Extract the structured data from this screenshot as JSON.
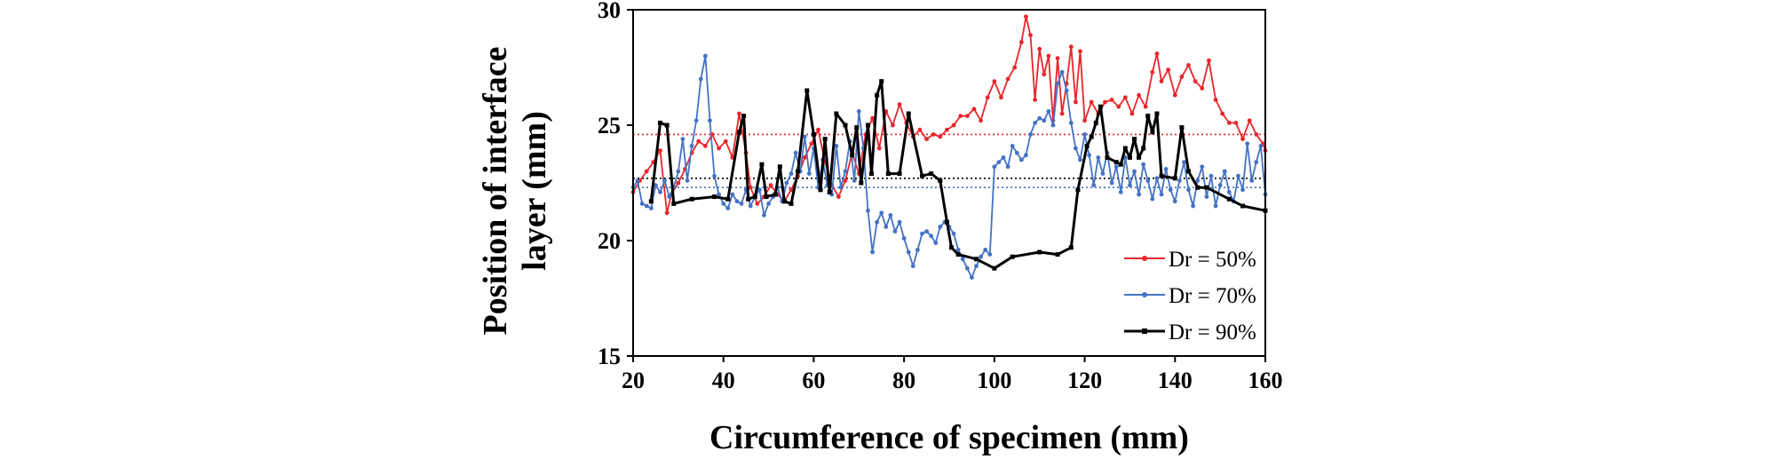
{
  "chart_data": {
    "type": "line",
    "title": "",
    "xlabel": "Circumference of specimen (mm)",
    "ylabel_lines": [
      "Position of interface",
      "layer (mm)"
    ],
    "xlim": [
      20,
      160
    ],
    "ylim": [
      15,
      30
    ],
    "x_ticks": [
      20,
      40,
      60,
      80,
      100,
      120,
      140,
      160
    ],
    "y_ticks": [
      15,
      20,
      25,
      30
    ],
    "grid": false,
    "legend_position": "lower-right inside",
    "series": [
      {
        "name": "Dr = 50%",
        "color": "#e8262b",
        "mean": 24.6,
        "points": [
          [
            20,
            22.1
          ],
          [
            21.5,
            22.6
          ],
          [
            23,
            23.0
          ],
          [
            24.5,
            23.4
          ],
          [
            26,
            23.9
          ],
          [
            27.5,
            21.2
          ],
          [
            28.5,
            22.0
          ],
          [
            30,
            22.5
          ],
          [
            31.5,
            23.1
          ],
          [
            33,
            23.8
          ],
          [
            34.5,
            24.3
          ],
          [
            36,
            24.1
          ],
          [
            37.5,
            24.6
          ],
          [
            39,
            24.0
          ],
          [
            40.5,
            24.3
          ],
          [
            42,
            23.6
          ],
          [
            43.5,
            25.5
          ],
          [
            45,
            23.8
          ],
          [
            46,
            22.3
          ],
          [
            47.5,
            21.6
          ],
          [
            49,
            21.9
          ],
          [
            50.5,
            22.4
          ],
          [
            52,
            22.0
          ],
          [
            53.5,
            21.7
          ],
          [
            55,
            22.2
          ],
          [
            56.5,
            22.8
          ],
          [
            58,
            23.6
          ],
          [
            59.5,
            24.2
          ],
          [
            61,
            24.8
          ],
          [
            62.5,
            23.4
          ],
          [
            64,
            22.4
          ],
          [
            65.5,
            21.9
          ],
          [
            67,
            22.6
          ],
          [
            68.5,
            23.8
          ],
          [
            70,
            22.9
          ],
          [
            71.5,
            24.6
          ],
          [
            73,
            25.3
          ],
          [
            74.5,
            24.0
          ],
          [
            76,
            25.6
          ],
          [
            77.5,
            25.0
          ],
          [
            79,
            25.9
          ],
          [
            80.5,
            25.1
          ],
          [
            82,
            24.5
          ],
          [
            83.5,
            24.8
          ],
          [
            85,
            24.4
          ],
          [
            86.5,
            24.6
          ],
          [
            88,
            24.5
          ],
          [
            89.5,
            24.8
          ],
          [
            91,
            25.0
          ],
          [
            92.5,
            25.4
          ],
          [
            94,
            25.4
          ],
          [
            95.5,
            25.7
          ],
          [
            97,
            25.2
          ],
          [
            98.5,
            26.2
          ],
          [
            100,
            26.9
          ],
          [
            101.5,
            26.2
          ],
          [
            103,
            27.0
          ],
          [
            104.5,
            27.5
          ],
          [
            106,
            28.6
          ],
          [
            107,
            29.7
          ],
          [
            108,
            28.9
          ],
          [
            109,
            26.1
          ],
          [
            110,
            28.3
          ],
          [
            111,
            27.2
          ],
          [
            112,
            28.0
          ],
          [
            113,
            25.2
          ],
          [
            114,
            27.9
          ],
          [
            115,
            25.5
          ],
          [
            116,
            26.8
          ],
          [
            117,
            28.4
          ],
          [
            118,
            26.0
          ],
          [
            119,
            28.2
          ],
          [
            120,
            25.2
          ],
          [
            121.5,
            26.0
          ],
          [
            123,
            25.5
          ],
          [
            124.5,
            26.0
          ],
          [
            126,
            26.1
          ],
          [
            127.5,
            25.8
          ],
          [
            129,
            26.2
          ],
          [
            130.5,
            25.5
          ],
          [
            132,
            26.3
          ],
          [
            133.5,
            25.8
          ],
          [
            135,
            27.3
          ],
          [
            136,
            28.1
          ],
          [
            137,
            26.9
          ],
          [
            138.5,
            27.4
          ],
          [
            140,
            26.3
          ],
          [
            141.5,
            27.1
          ],
          [
            143,
            27.6
          ],
          [
            144.5,
            26.9
          ],
          [
            146,
            26.6
          ],
          [
            147.5,
            27.8
          ],
          [
            149,
            26.1
          ],
          [
            150.5,
            25.5
          ],
          [
            152,
            25.1
          ],
          [
            153.5,
            25.1
          ],
          [
            155,
            24.4
          ],
          [
            156.5,
            25.2
          ],
          [
            158,
            24.6
          ],
          [
            159.5,
            24.2
          ],
          [
            160,
            23.9
          ]
        ]
      },
      {
        "name": "Dr = 70%",
        "color": "#4472c4",
        "mean": 22.3,
        "points": [
          [
            20,
            22.3
          ],
          [
            21,
            22.6
          ],
          [
            22,
            21.6
          ],
          [
            23,
            21.5
          ],
          [
            24,
            21.4
          ],
          [
            25,
            22.4
          ],
          [
            26,
            22.1
          ],
          [
            27,
            22.6
          ],
          [
            28,
            21.9
          ],
          [
            29,
            22.3
          ],
          [
            30,
            23.0
          ],
          [
            31,
            24.4
          ],
          [
            32,
            22.6
          ],
          [
            33,
            24.1
          ],
          [
            34,
            25.2
          ],
          [
            35,
            27.0
          ],
          [
            36,
            28.0
          ],
          [
            37,
            25.2
          ],
          [
            38,
            22.8
          ],
          [
            39,
            22.0
          ],
          [
            40,
            21.6
          ],
          [
            41,
            21.4
          ],
          [
            42,
            22.0
          ],
          [
            43,
            21.7
          ],
          [
            44,
            21.6
          ],
          [
            45,
            22.2
          ],
          [
            46,
            21.5
          ],
          [
            47,
            21.9
          ],
          [
            48,
            22.2
          ],
          [
            49,
            21.1
          ],
          [
            50,
            21.6
          ],
          [
            51,
            21.9
          ],
          [
            52,
            22.3
          ],
          [
            53,
            21.7
          ],
          [
            54,
            22.5
          ],
          [
            55,
            22.9
          ],
          [
            56,
            23.8
          ],
          [
            57,
            23.0
          ],
          [
            58,
            24.5
          ],
          [
            59,
            22.9
          ],
          [
            60,
            24.0
          ],
          [
            61,
            22.3
          ],
          [
            62,
            23.5
          ],
          [
            63,
            22.4
          ],
          [
            64,
            22.0
          ],
          [
            65,
            24.1
          ],
          [
            66,
            22.3
          ],
          [
            67,
            23.0
          ],
          [
            68,
            24.3
          ],
          [
            69,
            22.6
          ],
          [
            70,
            25.6
          ],
          [
            71,
            24.0
          ],
          [
            72,
            21.3
          ],
          [
            73,
            19.5
          ],
          [
            74,
            20.8
          ],
          [
            75,
            21.2
          ],
          [
            76,
            20.6
          ],
          [
            77,
            21.1
          ],
          [
            78,
            20.4
          ],
          [
            79,
            20.8
          ],
          [
            80,
            20.1
          ],
          [
            81,
            19.5
          ],
          [
            82,
            18.9
          ],
          [
            83,
            19.6
          ],
          [
            84,
            20.3
          ],
          [
            85,
            20.4
          ],
          [
            86,
            20.2
          ],
          [
            87,
            19.9
          ],
          [
            88,
            20.6
          ],
          [
            89,
            20.8
          ],
          [
            90,
            20.6
          ],
          [
            91,
            20.3
          ],
          [
            92,
            19.6
          ],
          [
            93,
            19.2
          ],
          [
            94,
            18.8
          ],
          [
            95,
            18.4
          ],
          [
            96,
            18.9
          ],
          [
            97,
            19.3
          ],
          [
            98,
            19.6
          ],
          [
            99,
            19.4
          ],
          [
            100,
            23.2
          ],
          [
            101,
            23.4
          ],
          [
            102,
            23.6
          ],
          [
            103,
            23.2
          ],
          [
            104,
            24.1
          ],
          [
            105,
            23.8
          ],
          [
            106,
            23.5
          ],
          [
            107,
            23.7
          ],
          [
            108,
            24.6
          ],
          [
            109,
            25.1
          ],
          [
            110,
            25.3
          ],
          [
            111,
            25.2
          ],
          [
            112,
            25.6
          ],
          [
            113,
            25.0
          ],
          [
            114,
            26.8
          ],
          [
            115,
            27.3
          ],
          [
            116,
            26.5
          ],
          [
            117,
            25.1
          ],
          [
            118,
            24.0
          ],
          [
            119,
            23.5
          ],
          [
            120,
            24.6
          ],
          [
            121,
            23.7
          ],
          [
            122,
            22.4
          ],
          [
            123,
            23.6
          ],
          [
            124,
            22.9
          ],
          [
            125,
            23.8
          ],
          [
            126,
            22.5
          ],
          [
            127,
            23.2
          ],
          [
            128,
            22.1
          ],
          [
            129,
            23.6
          ],
          [
            130,
            22.4
          ],
          [
            131,
            23.0
          ],
          [
            132,
            22.0
          ],
          [
            133,
            23.3
          ],
          [
            134,
            22.6
          ],
          [
            135,
            21.8
          ],
          [
            136,
            22.7
          ],
          [
            137,
            22.0
          ],
          [
            138,
            23.1
          ],
          [
            139,
            22.2
          ],
          [
            140,
            21.7
          ],
          [
            141,
            22.6
          ],
          [
            142,
            23.4
          ],
          [
            143,
            22.2
          ],
          [
            144,
            21.5
          ],
          [
            145,
            22.6
          ],
          [
            146,
            23.2
          ],
          [
            147,
            21.9
          ],
          [
            148,
            22.8
          ],
          [
            149,
            21.5
          ],
          [
            150,
            22.4
          ],
          [
            151,
            23.0
          ],
          [
            152,
            22.1
          ],
          [
            153,
            21.7
          ],
          [
            154,
            22.8
          ],
          [
            155,
            22.2
          ],
          [
            156,
            24.2
          ],
          [
            157,
            22.6
          ],
          [
            158,
            23.4
          ],
          [
            159,
            24.1
          ],
          [
            160,
            22.0
          ]
        ]
      },
      {
        "name": "Dr = 90%",
        "color": "#000000",
        "mean": 22.7,
        "points": [
          [
            24,
            21.7
          ],
          [
            26,
            25.1
          ],
          [
            27.5,
            25.0
          ],
          [
            29,
            21.6
          ],
          [
            33,
            21.8
          ],
          [
            38,
            21.9
          ],
          [
            41,
            21.8
          ],
          [
            43.5,
            24.7
          ],
          [
            44.5,
            25.4
          ],
          [
            45.5,
            21.8
          ],
          [
            47,
            21.9
          ],
          [
            48.5,
            23.3
          ],
          [
            49.5,
            21.9
          ],
          [
            51.5,
            22.0
          ],
          [
            52.5,
            23.2
          ],
          [
            53.5,
            21.7
          ],
          [
            55,
            21.6
          ],
          [
            56.5,
            23.0
          ],
          [
            58.5,
            26.5
          ],
          [
            60,
            24.6
          ],
          [
            61.5,
            22.2
          ],
          [
            62.5,
            24.4
          ],
          [
            63.5,
            22.1
          ],
          [
            65,
            25.5
          ],
          [
            67,
            25.0
          ],
          [
            68.5,
            23.7
          ],
          [
            69.5,
            24.9
          ],
          [
            70.5,
            22.5
          ],
          [
            72,
            25.0
          ],
          [
            72.8,
            22.9
          ],
          [
            74,
            26.3
          ],
          [
            75,
            26.9
          ],
          [
            76.5,
            22.9
          ],
          [
            79,
            22.9
          ],
          [
            81,
            25.5
          ],
          [
            84,
            22.8
          ],
          [
            86,
            22.9
          ],
          [
            88,
            22.6
          ],
          [
            89.5,
            20.8
          ],
          [
            90.5,
            19.7
          ],
          [
            92,
            19.4
          ],
          [
            96,
            19.2
          ],
          [
            100,
            18.8
          ],
          [
            104,
            19.3
          ],
          [
            110,
            19.5
          ],
          [
            114,
            19.4
          ],
          [
            117,
            19.7
          ],
          [
            118.5,
            22.2
          ],
          [
            120.5,
            24.1
          ],
          [
            121.5,
            24.5
          ],
          [
            122.5,
            25.1
          ],
          [
            123.5,
            25.8
          ],
          [
            125,
            23.6
          ],
          [
            127,
            23.4
          ],
          [
            128,
            23.3
          ],
          [
            129,
            24.0
          ],
          [
            130,
            23.6
          ],
          [
            131,
            24.4
          ],
          [
            132,
            23.6
          ],
          [
            133,
            24.0
          ],
          [
            134,
            25.4
          ],
          [
            135,
            24.7
          ],
          [
            136,
            25.5
          ],
          [
            137,
            22.8
          ],
          [
            140,
            22.7
          ],
          [
            141.5,
            24.9
          ],
          [
            143,
            23.0
          ],
          [
            145,
            22.3
          ],
          [
            147,
            22.3
          ],
          [
            152,
            21.8
          ],
          [
            155,
            21.5
          ],
          [
            160,
            21.3
          ]
        ]
      }
    ]
  }
}
